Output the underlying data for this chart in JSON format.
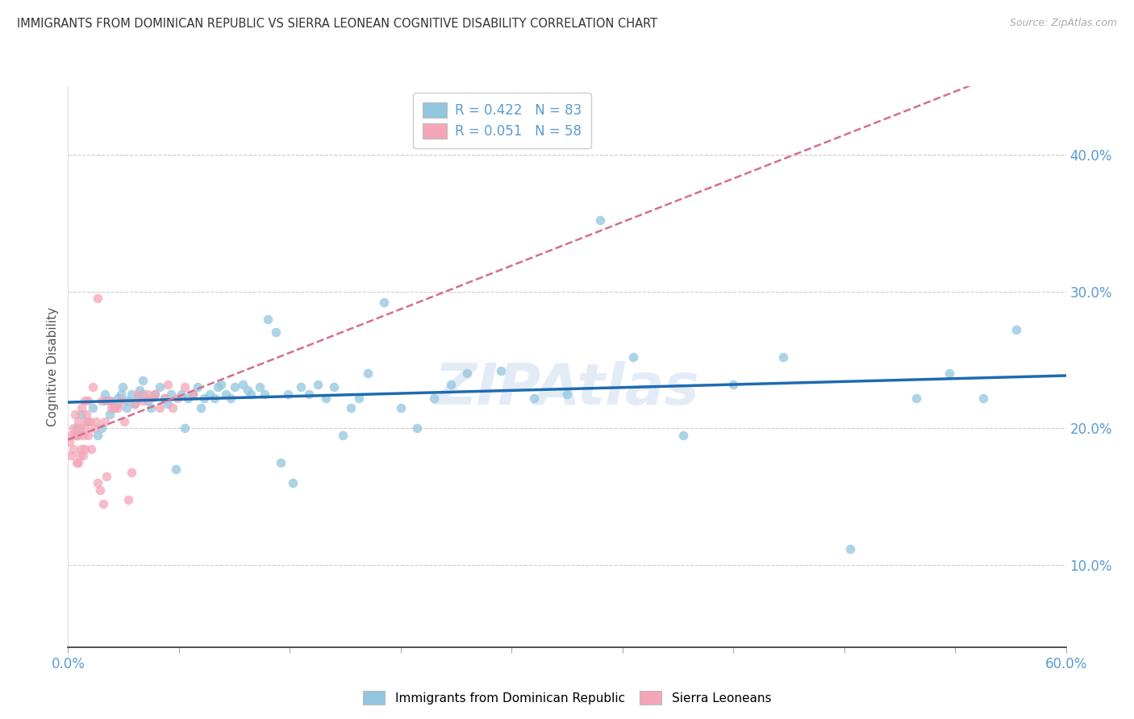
{
  "title": "IMMIGRANTS FROM DOMINICAN REPUBLIC VS SIERRA LEONEAN COGNITIVE DISABILITY CORRELATION CHART",
  "source": "Source: ZipAtlas.com",
  "ylabel": "Cognitive Disability",
  "ytick_labels": [
    "10.0%",
    "20.0%",
    "30.0%",
    "40.0%"
  ],
  "ytick_vals": [
    0.1,
    0.2,
    0.3,
    0.4
  ],
  "xlim": [
    0.0,
    0.6
  ],
  "ylim": [
    0.04,
    0.45
  ],
  "blue_color": "#92c5de",
  "pink_color": "#f4a6b8",
  "blue_line_color": "#1e6bb0",
  "pink_line_color": "#d4708a",
  "legend_blue_label": "R = 0.422   N = 83",
  "legend_pink_label": "R = 0.051   N = 58",
  "label_color": "#5b9bd5",
  "watermark": "ZIPAtlas",
  "blue_x": [
    0.005,
    0.008,
    0.012,
    0.015,
    0.018,
    0.02,
    0.022,
    0.022,
    0.025,
    0.025,
    0.028,
    0.03,
    0.03,
    0.032,
    0.033,
    0.035,
    0.035,
    0.038,
    0.04,
    0.042,
    0.043,
    0.045,
    0.045,
    0.048,
    0.05,
    0.052,
    0.055,
    0.058,
    0.06,
    0.062,
    0.065,
    0.068,
    0.07,
    0.072,
    0.075,
    0.078,
    0.08,
    0.082,
    0.085,
    0.088,
    0.09,
    0.092,
    0.095,
    0.098,
    0.1,
    0.105,
    0.108,
    0.11,
    0.115,
    0.118,
    0.12,
    0.125,
    0.128,
    0.132,
    0.135,
    0.14,
    0.145,
    0.15,
    0.155,
    0.16,
    0.165,
    0.17,
    0.175,
    0.18,
    0.19,
    0.2,
    0.21,
    0.22,
    0.23,
    0.24,
    0.26,
    0.28,
    0.3,
    0.32,
    0.34,
    0.37,
    0.4,
    0.43,
    0.47,
    0.51,
    0.53,
    0.55,
    0.57
  ],
  "blue_y": [
    0.2,
    0.21,
    0.205,
    0.215,
    0.195,
    0.2,
    0.22,
    0.225,
    0.21,
    0.22,
    0.215,
    0.218,
    0.222,
    0.225,
    0.23,
    0.22,
    0.215,
    0.225,
    0.218,
    0.222,
    0.228,
    0.225,
    0.235,
    0.22,
    0.215,
    0.225,
    0.23,
    0.222,
    0.218,
    0.225,
    0.17,
    0.225,
    0.2,
    0.222,
    0.225,
    0.23,
    0.215,
    0.222,
    0.225,
    0.222,
    0.23,
    0.232,
    0.225,
    0.222,
    0.23,
    0.232,
    0.228,
    0.225,
    0.23,
    0.225,
    0.28,
    0.27,
    0.175,
    0.225,
    0.16,
    0.23,
    0.225,
    0.232,
    0.222,
    0.23,
    0.195,
    0.215,
    0.222,
    0.24,
    0.292,
    0.215,
    0.2,
    0.222,
    0.232,
    0.24,
    0.242,
    0.222,
    0.225,
    0.352,
    0.252,
    0.195,
    0.232,
    0.252,
    0.112,
    0.222,
    0.24,
    0.222,
    0.272
  ],
  "pink_x": [
    0.001,
    0.002,
    0.002,
    0.003,
    0.003,
    0.004,
    0.004,
    0.005,
    0.005,
    0.006,
    0.006,
    0.006,
    0.007,
    0.007,
    0.008,
    0.008,
    0.009,
    0.009,
    0.01,
    0.01,
    0.01,
    0.011,
    0.011,
    0.012,
    0.012,
    0.013,
    0.014,
    0.015,
    0.016,
    0.017,
    0.018,
    0.018,
    0.019,
    0.02,
    0.021,
    0.022,
    0.023,
    0.025,
    0.026,
    0.028,
    0.03,
    0.032,
    0.034,
    0.036,
    0.038,
    0.04,
    0.042,
    0.045,
    0.048,
    0.05,
    0.052,
    0.055,
    0.058,
    0.06,
    0.063,
    0.066,
    0.07,
    0.075
  ],
  "pink_y": [
    0.19,
    0.195,
    0.18,
    0.2,
    0.185,
    0.195,
    0.21,
    0.195,
    0.175,
    0.205,
    0.175,
    0.195,
    0.2,
    0.18,
    0.215,
    0.185,
    0.18,
    0.195,
    0.2,
    0.22,
    0.185,
    0.205,
    0.21,
    0.195,
    0.22,
    0.205,
    0.185,
    0.23,
    0.2,
    0.205,
    0.16,
    0.295,
    0.155,
    0.22,
    0.145,
    0.205,
    0.165,
    0.22,
    0.215,
    0.215,
    0.215,
    0.22,
    0.205,
    0.148,
    0.168,
    0.218,
    0.225,
    0.22,
    0.225,
    0.222,
    0.225,
    0.215,
    0.222,
    0.232,
    0.215,
    0.222,
    0.23,
    0.225
  ]
}
